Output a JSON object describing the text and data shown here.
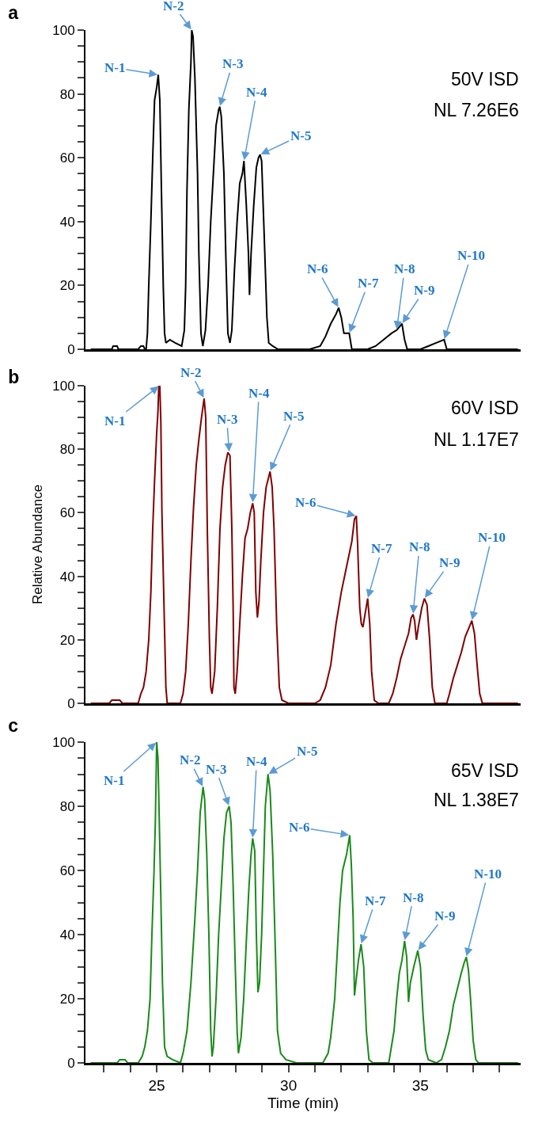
{
  "chart_data": [
    {
      "type": "line",
      "title": "a",
      "tick_labels": "y",
      "xlim": [
        22.3,
        38.8
      ],
      "ylim": [
        0,
        100
      ],
      "yticks": [
        0,
        {
          "value": 5,
          "label": null
        },
        20,
        {
          "value": 10,
          "label": null
        },
        {
          "value": 15,
          "label": null
        },
        {
          "value": 25,
          "label": null
        },
        {
          "value": 30,
          "label": null
        },
        {
          "value": 35,
          "label": null
        },
        40,
        {
          "value": 45,
          "label": null
        },
        {
          "value": 50,
          "label": null
        },
        {
          "value": 55,
          "label": null
        },
        60,
        {
          "value": 65,
          "label": null
        },
        {
          "value": 70,
          "label": null
        },
        {
          "value": 75,
          "label": null
        },
        80,
        {
          "value": 85,
          "label": null
        },
        {
          "value": 90,
          "label": null
        },
        {
          "value": 95,
          "label": null
        },
        100
      ],
      "series": [
        {
          "color": "#000000",
          "x": [
            22.5,
            23.3,
            23.35,
            23.5,
            23.55,
            24.3,
            24.4,
            24.5,
            24.55,
            24.6,
            24.65,
            24.7,
            24.78,
            24.85,
            24.92,
            25.0,
            25.06,
            25.12,
            25.18,
            25.25,
            25.3,
            25.35,
            25.5,
            25.7,
            25.95,
            26.05,
            26.1,
            26.15,
            26.22,
            26.3,
            26.33,
            26.38,
            26.45,
            26.55,
            26.6,
            26.68,
            26.75,
            26.85,
            26.95,
            27.05,
            27.15,
            27.25,
            27.35,
            27.39,
            27.45,
            27.55,
            27.62,
            27.7,
            27.78,
            27.85,
            27.95,
            28.05,
            28.15,
            28.25,
            28.31,
            28.4,
            28.48,
            28.52,
            28.58,
            28.68,
            28.78,
            28.86,
            28.92,
            28.98,
            29.08,
            29.18,
            29.25,
            29.4,
            29.6,
            30.8,
            31.2,
            31.4,
            31.6,
            31.8,
            31.9,
            32.0,
            32.1,
            32.3,
            32.4,
            33.0,
            33.3,
            33.6,
            33.9,
            34.1,
            34.2,
            34.3,
            34.4,
            34.5,
            35.0,
            35.3,
            35.6,
            35.9,
            36.0,
            38.7
          ],
          "values": [
            0,
            0,
            1,
            1,
            0,
            0,
            1,
            1,
            0,
            0,
            5,
            20,
            40,
            60,
            78,
            82,
            86,
            78,
            50,
            20,
            5,
            2,
            3,
            2,
            1,
            6,
            20,
            50,
            75,
            90,
            100,
            98,
            85,
            55,
            30,
            5,
            1,
            6,
            20,
            40,
            55,
            70,
            75,
            76,
            73,
            55,
            30,
            5,
            2,
            6,
            25,
            40,
            52,
            55,
            59,
            45,
            30,
            17,
            30,
            45,
            57,
            60,
            61,
            59,
            35,
            10,
            2,
            1,
            0,
            0,
            1,
            4,
            8,
            11,
            13,
            10,
            5,
            5,
            0,
            0,
            1,
            3,
            5,
            6,
            7,
            8,
            3,
            0,
            0,
            1,
            2,
            3,
            0,
            0
          ]
        }
      ],
      "annotations": [
        "50V ISD",
        "NL 7.26E6",
        {
          "text": "N-1",
          "x": 25.06,
          "y": 86
        },
        {
          "text": "N-2",
          "x": 26.33,
          "y": 100
        },
        {
          "text": "N-3",
          "x": 27.39,
          "y": 76
        },
        {
          "text": "N-4",
          "x": 28.31,
          "y": 59
        },
        {
          "text": "N-5",
          "x": 28.92,
          "y": 61
        },
        {
          "text": "N-6",
          "x": 31.9,
          "y": 13
        },
        {
          "text": "N-7",
          "x": 32.3,
          "y": 5
        },
        {
          "text": "N-8",
          "x": 34.1,
          "y": 6
        },
        {
          "text": "N-9",
          "x": 34.3,
          "y": 8
        },
        {
          "text": "N-10",
          "x": 35.9,
          "y": 3
        }
      ]
    },
    {
      "type": "line",
      "title": "b",
      "ylabel": "Relative Abundance",
      "tick_labels": "y",
      "xlim": [
        22.3,
        38.8
      ],
      "ylim": [
        0,
        100
      ],
      "yticks": [
        0,
        {
          "value": 5,
          "label": null
        },
        {
          "value": 10,
          "label": null
        },
        {
          "value": 15,
          "label": null
        },
        20,
        {
          "value": 25,
          "label": null
        },
        {
          "value": 30,
          "label": null
        },
        {
          "value": 35,
          "label": null
        },
        40,
        {
          "value": 45,
          "label": null
        },
        {
          "value": 50,
          "label": null
        },
        {
          "value": 55,
          "label": null
        },
        60,
        {
          "value": 65,
          "label": null
        },
        {
          "value": 70,
          "label": null
        },
        {
          "value": 75,
          "label": null
        },
        80,
        {
          "value": 85,
          "label": null
        },
        {
          "value": 90,
          "label": null
        },
        {
          "value": 95,
          "label": null
        },
        100
      ],
      "series": [
        {
          "color": "#800000",
          "x": [
            22.5,
            23.2,
            23.3,
            23.6,
            23.7,
            24.3,
            24.4,
            24.5,
            24.6,
            24.7,
            24.78,
            24.85,
            24.92,
            25.0,
            25.05,
            25.08,
            25.12,
            25.16,
            25.2,
            25.28,
            25.35,
            25.4,
            25.9,
            26.0,
            26.1,
            26.2,
            26.3,
            26.4,
            26.5,
            26.6,
            26.7,
            26.8,
            26.86,
            26.92,
            27.0,
            27.05,
            27.1,
            27.2,
            27.3,
            27.4,
            27.5,
            27.6,
            27.7,
            27.78,
            27.85,
            27.9,
            27.93,
            27.98,
            28.05,
            28.15,
            28.25,
            28.35,
            28.45,
            28.55,
            28.64,
            28.7,
            28.76,
            28.82,
            28.88,
            28.95,
            29.05,
            29.15,
            29.3,
            29.38,
            29.45,
            29.55,
            29.65,
            29.75,
            30.0,
            31.0,
            31.2,
            31.4,
            31.6,
            31.8,
            32.0,
            32.2,
            32.4,
            32.5,
            32.57,
            32.62,
            32.7,
            32.76,
            32.82,
            32.9,
            33.0,
            33.08,
            33.15,
            33.25,
            33.4,
            33.8,
            33.95,
            34.1,
            34.25,
            34.4,
            34.55,
            34.65,
            34.72,
            34.78,
            34.85,
            34.92,
            35.05,
            35.15,
            35.25,
            35.35,
            35.45,
            35.55,
            36.0,
            36.1,
            36.25,
            36.4,
            36.55,
            36.7,
            36.85,
            36.95,
            37.05,
            37.15,
            37.25,
            37.35,
            38.7
          ],
          "values": [
            0,
            0,
            1,
            1,
            0,
            0,
            3,
            5,
            10,
            20,
            35,
            55,
            70,
            85,
            92,
            100,
            100,
            88,
            60,
            30,
            5,
            0,
            0,
            3,
            10,
            25,
            45,
            62,
            75,
            83,
            90,
            96,
            90,
            55,
            20,
            5,
            3,
            10,
            30,
            55,
            68,
            75,
            79,
            78,
            55,
            30,
            5,
            3,
            10,
            25,
            40,
            52,
            55,
            60,
            63,
            60,
            35,
            27,
            32,
            45,
            60,
            68,
            73,
            68,
            55,
            25,
            5,
            1,
            0,
            0,
            1,
            5,
            12,
            25,
            35,
            43,
            51,
            58,
            59,
            50,
            30,
            25,
            24,
            28,
            33,
            25,
            10,
            1,
            0,
            0,
            3,
            8,
            14,
            18,
            22,
            27,
            28,
            26,
            20,
            24,
            30,
            33,
            31,
            20,
            5,
            0,
            0,
            3,
            8,
            12,
            16,
            21,
            24,
            26,
            22,
            12,
            3,
            0,
            0
          ]
        }
      ],
      "annotations": [
        "60V ISD",
        "NL 1.17E7",
        {
          "text": "N-1",
          "x": 25.1,
          "y": 100
        },
        {
          "text": "N-2",
          "x": 26.8,
          "y": 96
        },
        {
          "text": "N-3",
          "x": 27.75,
          "y": 79
        },
        {
          "text": "N-4",
          "x": 28.64,
          "y": 63
        },
        {
          "text": "N-5",
          "x": 29.3,
          "y": 73
        },
        {
          "text": "N-6",
          "x": 32.57,
          "y": 59
        },
        {
          "text": "N-7",
          "x": 33.0,
          "y": 33
        },
        {
          "text": "N-8",
          "x": 34.72,
          "y": 28
        },
        {
          "text": "N-9",
          "x": 35.15,
          "y": 33
        },
        {
          "text": "N-10",
          "x": 36.95,
          "y": 26
        }
      ]
    },
    {
      "type": "line",
      "title": "c",
      "xlabel": "Time (min)",
      "xlim": [
        22.3,
        38.8
      ],
      "ylim": [
        0,
        100
      ],
      "xticks": [
        {
          "value": 23,
          "label": null
        },
        {
          "value": 24,
          "label": null
        },
        25,
        {
          "value": 26,
          "label": null
        },
        {
          "value": 27,
          "label": null
        },
        {
          "value": 28,
          "label": null
        },
        {
          "value": 29,
          "label": null
        },
        30,
        {
          "value": 31,
          "label": null
        },
        {
          "value": 32,
          "label": null
        },
        {
          "value": 33,
          "label": null
        },
        {
          "value": 34,
          "label": null
        },
        35,
        {
          "value": 36,
          "label": null
        },
        {
          "value": 37,
          "label": null
        },
        {
          "value": 38,
          "label": null
        }
      ],
      "yticks": [
        0,
        {
          "value": 5,
          "label": null
        },
        {
          "value": 10,
          "label": null
        },
        {
          "value": 15,
          "label": null
        },
        20,
        {
          "value": 25,
          "label": null
        },
        {
          "value": 30,
          "label": null
        },
        {
          "value": 35,
          "label": null
        },
        40,
        {
          "value": 45,
          "label": null
        },
        {
          "value": 50,
          "label": null
        },
        {
          "value": 55,
          "label": null
        },
        60,
        {
          "value": 65,
          "label": null
        },
        {
          "value": 70,
          "label": null
        },
        {
          "value": 75,
          "label": null
        },
        80,
        {
          "value": 85,
          "label": null
        },
        {
          "value": 90,
          "label": null
        },
        {
          "value": 95,
          "label": null
        },
        100
      ],
      "series": [
        {
          "color": "#1a8a1a",
          "x": [
            22.5,
            23.5,
            23.6,
            23.8,
            23.9,
            24.3,
            24.45,
            24.55,
            24.65,
            24.75,
            24.82,
            24.9,
            24.95,
            25.0,
            25.05,
            25.1,
            25.15,
            25.22,
            25.3,
            25.4,
            25.6,
            25.9,
            26.0,
            26.15,
            26.3,
            26.45,
            26.55,
            26.65,
            26.76,
            26.82,
            26.9,
            26.98,
            27.05,
            27.1,
            27.15,
            27.25,
            27.35,
            27.45,
            27.55,
            27.65,
            27.75,
            27.82,
            27.9,
            27.98,
            28.05,
            28.1,
            28.2,
            28.3,
            28.4,
            28.5,
            28.58,
            28.64,
            28.72,
            28.78,
            28.84,
            28.9,
            28.98,
            29.05,
            29.12,
            29.22,
            29.3,
            29.4,
            29.5,
            29.58,
            29.7,
            29.9,
            30.3,
            31.3,
            31.5,
            31.6,
            31.75,
            31.85,
            31.95,
            32.05,
            32.2,
            32.32,
            32.38,
            32.45,
            32.5,
            32.58,
            32.65,
            32.75,
            32.85,
            32.95,
            33.05,
            33.2,
            33.8,
            33.9,
            34.0,
            34.1,
            34.2,
            34.3,
            34.4,
            34.48,
            34.55,
            34.62,
            34.75,
            34.9,
            35.0,
            35.1,
            35.2,
            35.3,
            35.6,
            35.8,
            35.95,
            36.1,
            36.25,
            36.4,
            36.55,
            36.65,
            36.74,
            36.82,
            36.9,
            37.0,
            37.1,
            37.2,
            38.7
          ],
          "values": [
            0,
            0,
            1,
            1,
            0,
            0,
            2,
            5,
            10,
            20,
            40,
            60,
            75,
            100,
            95,
            75,
            55,
            25,
            5,
            2,
            1,
            0,
            3,
            10,
            25,
            45,
            60,
            78,
            86,
            82,
            65,
            40,
            10,
            2,
            5,
            20,
            40,
            55,
            70,
            78,
            80,
            75,
            55,
            30,
            10,
            3,
            8,
            20,
            38,
            55,
            65,
            70,
            66,
            40,
            22,
            25,
            40,
            60,
            80,
            90,
            85,
            65,
            35,
            10,
            3,
            1,
            0,
            0,
            3,
            8,
            20,
            35,
            50,
            60,
            65,
            71,
            62,
            45,
            21,
            27,
            32,
            37,
            30,
            10,
            1,
            0,
            0,
            5,
            10,
            20,
            28,
            32,
            38,
            33,
            19,
            25,
            30,
            35,
            30,
            15,
            4,
            1,
            0,
            1,
            5,
            10,
            18,
            23,
            28,
            31,
            33,
            29,
            20,
            7,
            1,
            0,
            0
          ]
        }
      ],
      "annotations": [
        "65V ISD",
        "NL 1.38E7",
        {
          "text": "N-1",
          "x": 25.0,
          "y": 100
        },
        {
          "text": "N-2",
          "x": 26.76,
          "y": 86
        },
        {
          "text": "N-3",
          "x": 27.75,
          "y": 80
        },
        {
          "text": "N-4",
          "x": 28.64,
          "y": 70
        },
        {
          "text": "N-5",
          "x": 29.22,
          "y": 90
        },
        {
          "text": "N-6",
          "x": 32.32,
          "y": 71
        },
        {
          "text": "N-7",
          "x": 32.75,
          "y": 37
        },
        {
          "text": "N-8",
          "x": 34.4,
          "y": 38
        },
        {
          "text": "N-9",
          "x": 34.9,
          "y": 35
        },
        {
          "text": "N-10",
          "x": 36.74,
          "y": 33
        }
      ]
    }
  ]
}
